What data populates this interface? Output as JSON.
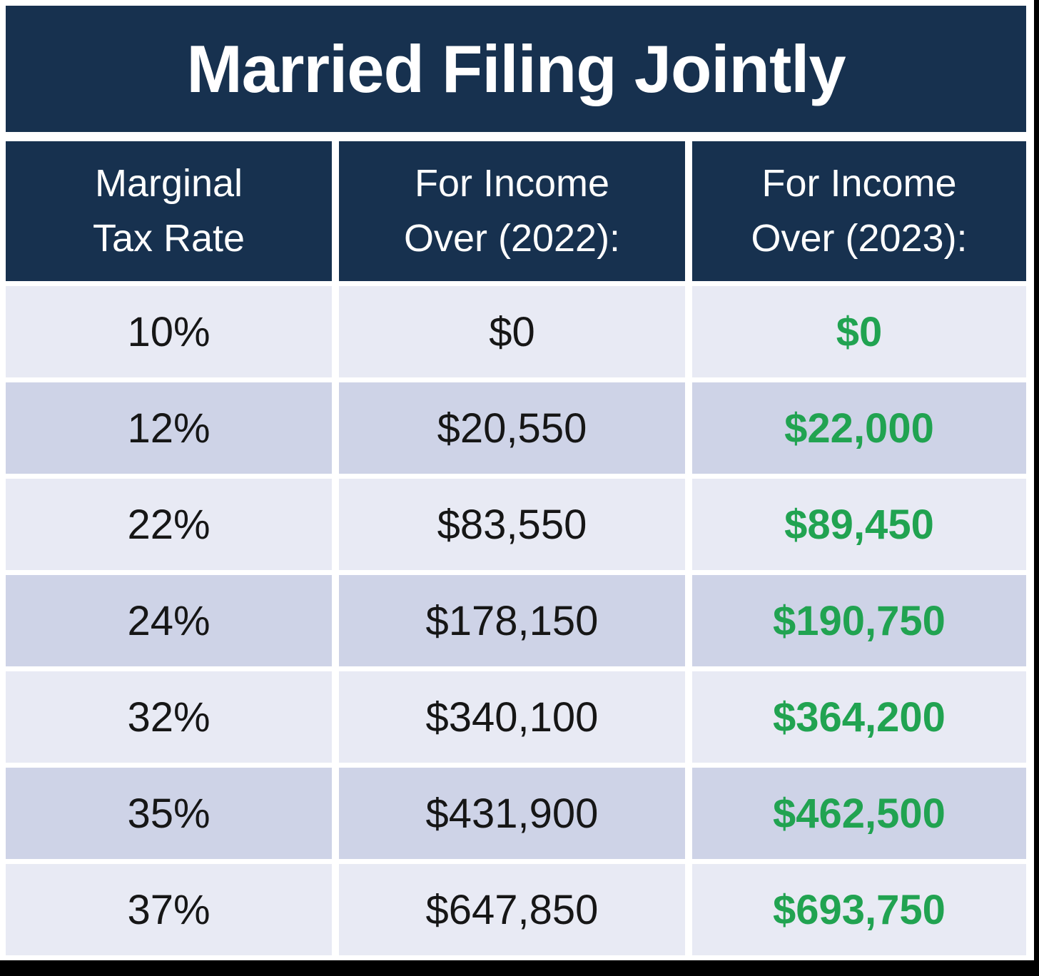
{
  "title": "Married Filing Jointly",
  "colors": {
    "navy_header": "#17314f",
    "row_light": "#e8eaf4",
    "row_dark": "#ced3e7",
    "value_2023_green": "#21a351",
    "value_text_dark": "#161616",
    "matte_white": "#ffffff",
    "edge_black": "#000000"
  },
  "table": {
    "headers": [
      {
        "top": "Marginal",
        "bottom": "Tax Rate"
      },
      {
        "top": "For Income",
        "bottom": "Over (2022):"
      },
      {
        "top": "For Income",
        "bottom": "Over (2023):"
      }
    ],
    "rows": [
      {
        "rate": "10%",
        "y2022": "$0",
        "y2023": "$0"
      },
      {
        "rate": "12%",
        "y2022": "$20,550",
        "y2023": "$22,000"
      },
      {
        "rate": "22%",
        "y2022": "$83,550",
        "y2023": "$89,450"
      },
      {
        "rate": "24%",
        "y2022": "$178,150",
        "y2023": "$190,750"
      },
      {
        "rate": "32%",
        "y2022": "$340,100",
        "y2023": "$364,200"
      },
      {
        "rate": "35%",
        "y2022": "$431,900",
        "y2023": "$462,500"
      },
      {
        "rate": "37%",
        "y2022": "$647,850",
        "y2023": "$693,750"
      }
    ]
  },
  "chart_data": {
    "type": "table",
    "title": "Married Filing Jointly",
    "columns": [
      "Marginal Tax Rate",
      "For Income Over (2022):",
      "For Income Over (2023):"
    ],
    "rows": [
      [
        "10%",
        0,
        0
      ],
      [
        "12%",
        20550,
        22000
      ],
      [
        "22%",
        83550,
        89450
      ],
      [
        "24%",
        178150,
        190750
      ],
      [
        "32%",
        340100,
        364200
      ],
      [
        "35%",
        431900,
        462500
      ],
      [
        "37%",
        647850,
        693750
      ]
    ],
    "notes": "2023 thresholds rendered in green bold; header and title on navy; rows alternate light/dark lavender"
  }
}
